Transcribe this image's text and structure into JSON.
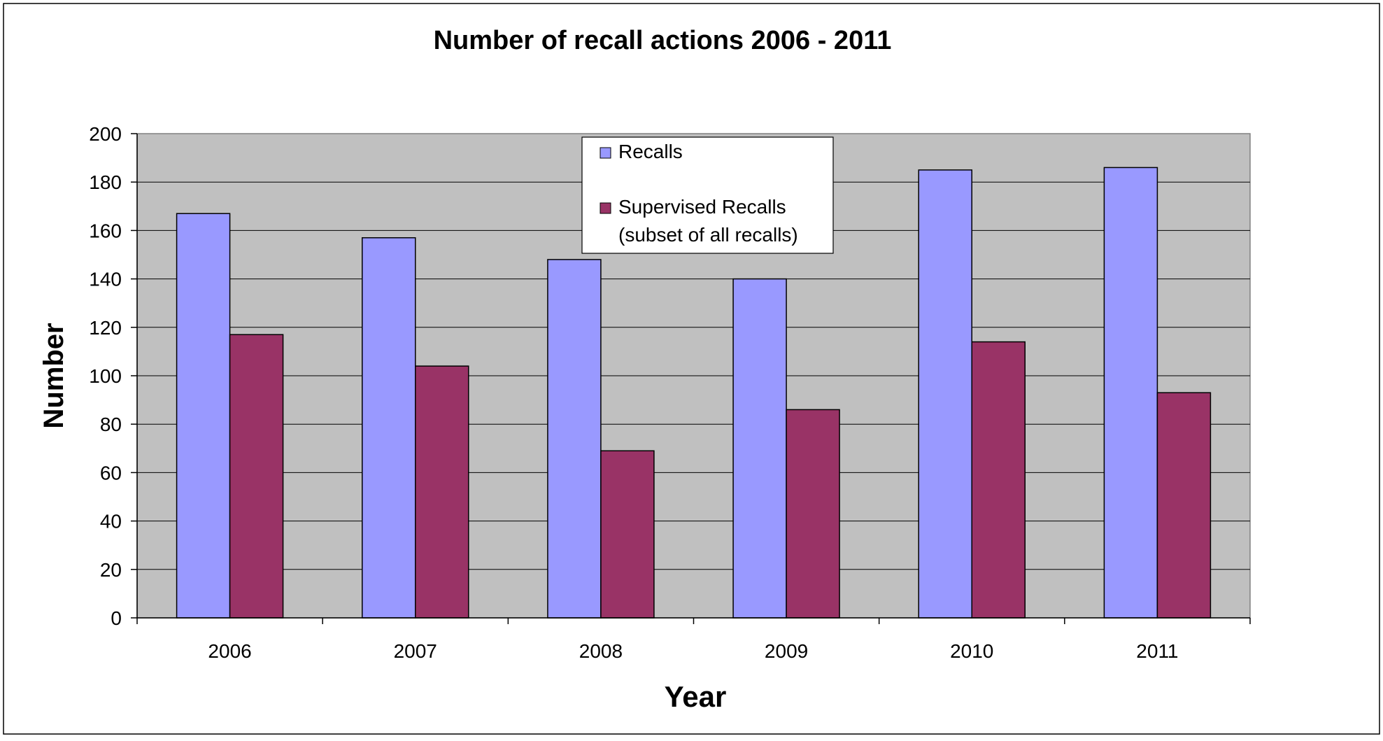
{
  "chart_data": {
    "type": "bar",
    "title": "Number of recall actions 2006 - 2011",
    "xlabel": "Year",
    "ylabel": "Number",
    "categories": [
      "2006",
      "2007",
      "2008",
      "2009",
      "2010",
      "2011"
    ],
    "series": [
      {
        "name": "Recalls",
        "values": [
          167,
          157,
          148,
          140,
          185,
          186
        ],
        "color": "#9999ff"
      },
      {
        "name": "Supervised Recalls",
        "name_line2": "(subset of all recalls)",
        "values": [
          117,
          104,
          69,
          86,
          114,
          93
        ],
        "color": "#993366"
      }
    ],
    "ylim": [
      0,
      200
    ],
    "yticks": [
      "0",
      "20",
      "40",
      "60",
      "80",
      "100",
      "120",
      "140",
      "160",
      "180",
      "200"
    ],
    "grid": true,
    "legend_position": "top-center",
    "plot_background": "#c0c0c0"
  }
}
